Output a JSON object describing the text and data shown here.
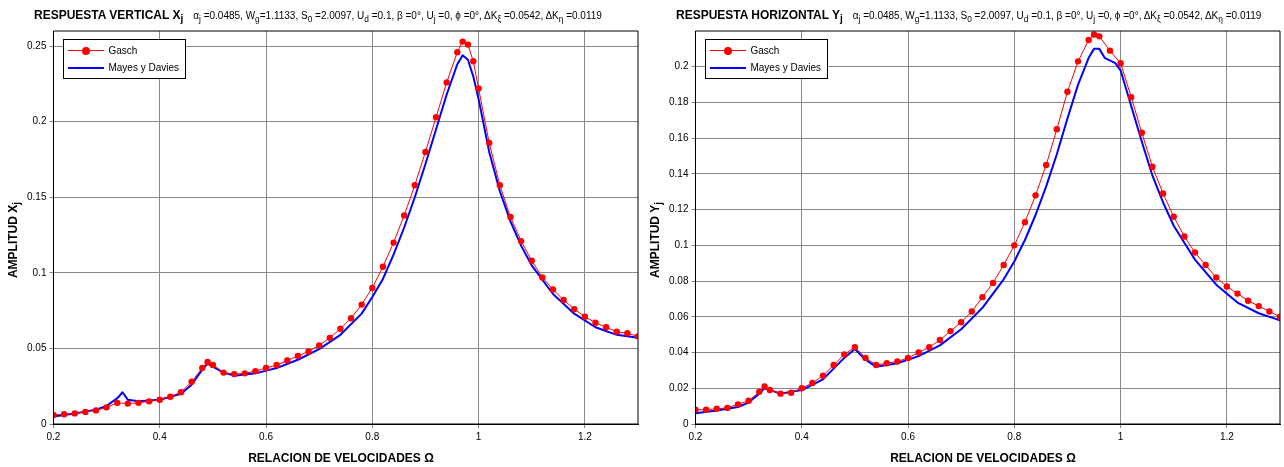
{
  "chart_data": [
    {
      "type": "line",
      "title": "RESPUESTA VERTICAL X$_{j}$",
      "subtitle": "α$_{j}$ =0.0485, W$_{g}$=1.1133, S$_{0}$ =2.0097, U$_{d}$ =0.1, β =0°, U$_{j}$ =0, ϕ =0°, ΔK$_{ξ}$ =0.0542, ΔK$_{η}$ =0.0119",
      "xlabel": "RELACION DE VELOCIDADES   Ω",
      "ylabel": "AMPLITUD   X$_{j}$",
      "xlim": [
        0.2,
        1.3
      ],
      "xticks": [
        0.2,
        0.4,
        0.6,
        0.8,
        1,
        1.2
      ],
      "ylim": [
        0,
        0.26
      ],
      "yticks": [
        0,
        0.05,
        0.1,
        0.15,
        0.2,
        0.25
      ],
      "grid": true,
      "legend": "top left",
      "series": [
        {
          "name": "Gasch",
          "color": "#ff0000",
          "marker": "circle",
          "x": [
            0.2,
            0.22,
            0.24,
            0.26,
            0.28,
            0.3,
            0.32,
            0.34,
            0.36,
            0.38,
            0.4,
            0.42,
            0.44,
            0.46,
            0.48,
            0.49,
            0.5,
            0.52,
            0.54,
            0.56,
            0.58,
            0.6,
            0.62,
            0.64,
            0.66,
            0.68,
            0.7,
            0.72,
            0.74,
            0.76,
            0.78,
            0.8,
            0.82,
            0.84,
            0.86,
            0.88,
            0.9,
            0.92,
            0.94,
            0.96,
            0.97,
            0.98,
            0.99,
            1,
            1.02,
            1.04,
            1.06,
            1.08,
            1.1,
            1.12,
            1.14,
            1.16,
            1.18,
            1.2,
            1.22,
            1.24,
            1.26,
            1.28,
            1.3
          ],
          "values": [
            0.006,
            0.0065,
            0.007,
            0.008,
            0.009,
            0.011,
            0.014,
            0.0135,
            0.014,
            0.015,
            0.016,
            0.018,
            0.021,
            0.028,
            0.037,
            0.041,
            0.039,
            0.034,
            0.033,
            0.0335,
            0.035,
            0.037,
            0.039,
            0.042,
            0.045,
            0.048,
            0.052,
            0.057,
            0.063,
            0.07,
            0.079,
            0.09,
            0.104,
            0.12,
            0.138,
            0.158,
            0.18,
            0.203,
            0.226,
            0.246,
            0.253,
            0.251,
            0.24,
            0.222,
            0.186,
            0.158,
            0.137,
            0.121,
            0.108,
            0.097,
            0.089,
            0.082,
            0.076,
            0.071,
            0.067,
            0.064,
            0.061,
            0.06,
            0.058
          ]
        },
        {
          "name": "Mayes y Davies",
          "color": "#0000ff",
          "marker": "none",
          "x": [
            0.2,
            0.24,
            0.28,
            0.3,
            0.32,
            0.33,
            0.34,
            0.36,
            0.4,
            0.44,
            0.46,
            0.48,
            0.49,
            0.5,
            0.52,
            0.54,
            0.58,
            0.62,
            0.66,
            0.7,
            0.74,
            0.78,
            0.8,
            0.82,
            0.84,
            0.86,
            0.88,
            0.9,
            0.92,
            0.94,
            0.96,
            0.97,
            0.98,
            0.99,
            1,
            1.02,
            1.04,
            1.06,
            1.08,
            1.1,
            1.14,
            1.18,
            1.22,
            1.26,
            1.3
          ],
          "values": [
            0.005,
            0.007,
            0.0095,
            0.012,
            0.017,
            0.021,
            0.016,
            0.015,
            0.016,
            0.02,
            0.026,
            0.036,
            0.04,
            0.038,
            0.034,
            0.032,
            0.0335,
            0.037,
            0.0425,
            0.0495,
            0.059,
            0.073,
            0.084,
            0.096,
            0.112,
            0.13,
            0.15,
            0.172,
            0.195,
            0.218,
            0.238,
            0.244,
            0.241,
            0.23,
            0.215,
            0.18,
            0.154,
            0.134,
            0.118,
            0.105,
            0.086,
            0.073,
            0.064,
            0.059,
            0.057
          ]
        }
      ]
    },
    {
      "type": "line",
      "title": "RESPUESTA HORIZONTAL Y$_{j}$",
      "subtitle": "α$_{j}$ =0.0485, W$_{g}$=1.1133, S$_{0}$ =2.0097, U$_{d}$ =0.1, β =0°, U$_{j}$ =0, ϕ =0°, ΔK$_{ξ}$ =0.0542, ΔK$_{η}$ =0.0119",
      "xlabel": "RELACION DE VELOCIDADES   Ω",
      "ylabel": "AMPLITUD   Y$_{j}$",
      "xlim": [
        0.2,
        1.3
      ],
      "xticks": [
        0.2,
        0.4,
        0.6,
        0.8,
        1,
        1.2
      ],
      "ylim": [
        0,
        0.22
      ],
      "yticks": [
        0,
        0.02,
        0.04,
        0.06,
        0.08,
        0.1,
        0.12,
        0.14,
        0.16,
        0.18,
        0.2
      ],
      "grid": true,
      "legend": "top left",
      "series": [
        {
          "name": "Gasch",
          "color": "#ff0000",
          "marker": "circle",
          "x": [
            0.2,
            0.22,
            0.24,
            0.26,
            0.28,
            0.3,
            0.32,
            0.33,
            0.34,
            0.36,
            0.38,
            0.4,
            0.42,
            0.44,
            0.46,
            0.48,
            0.5,
            0.52,
            0.54,
            0.56,
            0.58,
            0.6,
            0.62,
            0.64,
            0.66,
            0.68,
            0.7,
            0.72,
            0.74,
            0.76,
            0.78,
            0.8,
            0.82,
            0.84,
            0.86,
            0.88,
            0.9,
            0.92,
            0.94,
            0.95,
            0.96,
            0.98,
            1,
            1.02,
            1.04,
            1.06,
            1.08,
            1.1,
            1.12,
            1.14,
            1.16,
            1.18,
            1.2,
            1.22,
            1.24,
            1.26,
            1.28,
            1.3
          ],
          "values": [
            0.008,
            0.008,
            0.0085,
            0.009,
            0.011,
            0.013,
            0.018,
            0.021,
            0.019,
            0.017,
            0.0175,
            0.02,
            0.023,
            0.027,
            0.033,
            0.039,
            0.043,
            0.037,
            0.033,
            0.034,
            0.035,
            0.037,
            0.04,
            0.043,
            0.047,
            0.052,
            0.057,
            0.063,
            0.071,
            0.079,
            0.089,
            0.1,
            0.113,
            0.128,
            0.145,
            0.165,
            0.186,
            0.203,
            0.215,
            0.218,
            0.217,
            0.209,
            0.202,
            0.183,
            0.163,
            0.144,
            0.129,
            0.116,
            0.105,
            0.096,
            0.089,
            0.082,
            0.077,
            0.073,
            0.069,
            0.066,
            0.063,
            0.06
          ]
        },
        {
          "name": "Mayes y Davies",
          "color": "#0000ff",
          "marker": "none",
          "x": [
            0.2,
            0.24,
            0.28,
            0.3,
            0.32,
            0.33,
            0.34,
            0.36,
            0.4,
            0.44,
            0.48,
            0.5,
            0.52,
            0.54,
            0.58,
            0.62,
            0.66,
            0.7,
            0.74,
            0.78,
            0.8,
            0.82,
            0.84,
            0.86,
            0.88,
            0.9,
            0.92,
            0.94,
            0.95,
            0.96,
            0.97,
            0.99,
            1,
            1.02,
            1.04,
            1.06,
            1.08,
            1.1,
            1.14,
            1.18,
            1.22,
            1.26,
            1.3
          ],
          "values": [
            0.006,
            0.0075,
            0.0095,
            0.012,
            0.017,
            0.02,
            0.019,
            0.017,
            0.019,
            0.025,
            0.037,
            0.042,
            0.036,
            0.032,
            0.034,
            0.038,
            0.044,
            0.053,
            0.065,
            0.081,
            0.091,
            0.103,
            0.117,
            0.133,
            0.151,
            0.171,
            0.19,
            0.205,
            0.21,
            0.21,
            0.205,
            0.202,
            0.198,
            0.178,
            0.158,
            0.139,
            0.124,
            0.111,
            0.092,
            0.078,
            0.068,
            0.062,
            0.058
          ]
        }
      ]
    }
  ]
}
